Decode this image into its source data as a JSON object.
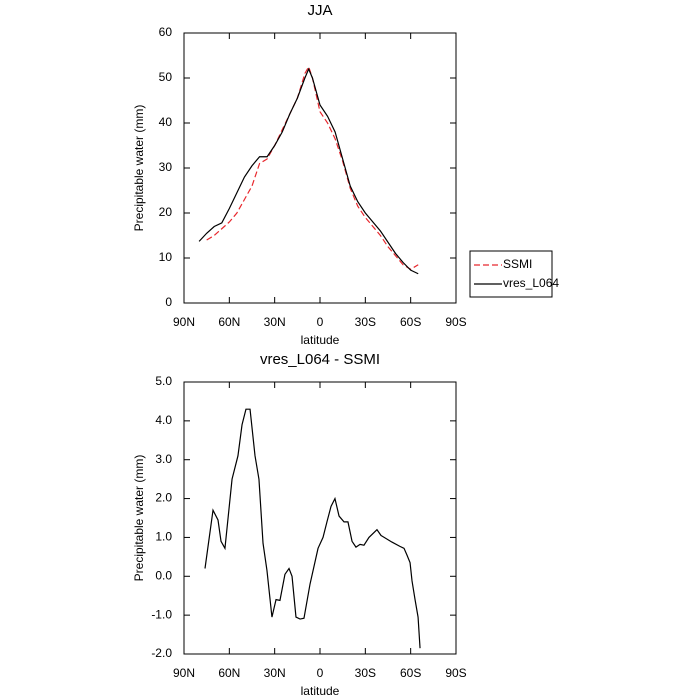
{
  "chart_data": [
    {
      "type": "line",
      "title": "JJA",
      "x_label": "latitude",
      "y_label": "Precipitable water (mm)",
      "xlim": [
        90,
        -90
      ],
      "xticks": [
        {
          "value": 90,
          "label": "90N"
        },
        {
          "value": 60,
          "label": "60N"
        },
        {
          "value": 30,
          "label": "30N"
        },
        0,
        {
          "value": -30,
          "label": "30S"
        },
        {
          "value": -60,
          "label": "60S"
        },
        {
          "value": -90,
          "label": "90S"
        }
      ],
      "ylim": [
        0,
        60
      ],
      "yticks": [
        0,
        10,
        20,
        30,
        40,
        50,
        60
      ],
      "legend": "outside-right",
      "x": [
        80,
        75,
        70,
        65,
        60,
        55,
        50,
        45,
        40,
        35,
        30,
        25,
        20,
        15,
        10,
        7.5,
        5,
        0,
        -5,
        -10,
        -15,
        -20,
        -25,
        -30,
        -35,
        -40,
        -45,
        -50,
        -55,
        -60,
        -65
      ],
      "series": [
        {
          "name": "SSMI",
          "color": "#e8282e",
          "line_style": "dashed",
          "values": [
            null,
            14,
            15,
            16.5,
            18,
            20,
            23,
            26,
            31,
            32,
            35,
            38.5,
            42,
            45.5,
            51,
            52.5,
            50,
            42.5,
            40,
            36.5,
            31.5,
            25.5,
            21.5,
            19,
            17,
            15,
            12.5,
            10.5,
            8.5,
            7.5,
            8.5
          ]
        },
        {
          "name": "vres_L064",
          "color": "#000000",
          "line_style": "solid",
          "values": [
            13.7,
            15.5,
            17,
            17.8,
            21,
            24.5,
            28,
            30.5,
            32.5,
            32.5,
            35,
            38,
            42,
            45.5,
            50,
            52,
            50,
            44,
            41.5,
            38,
            32,
            26,
            22.5,
            20,
            18,
            16,
            13.5,
            11,
            9,
            7.3,
            6.5
          ]
        }
      ]
    },
    {
      "type": "line",
      "title": "vres_L064 - SSMI",
      "x_label": "latitude",
      "y_label": "Precipitable water (mm)",
      "xlim": [
        90,
        -90
      ],
      "xticks": [
        {
          "value": 90,
          "label": "90N"
        },
        {
          "value": 60,
          "label": "60N"
        },
        {
          "value": 30,
          "label": "30N"
        },
        0,
        {
          "value": -30,
          "label": "30S"
        },
        {
          "value": -60,
          "label": "60S"
        },
        {
          "value": -90,
          "label": "90S"
        }
      ],
      "ylim": [
        -2,
        5
      ],
      "yticks": [
        {
          "value": -2,
          "label": "-2.0"
        },
        {
          "value": -1,
          "label": "-1.0"
        },
        {
          "value": 0,
          "label": "0.0"
        },
        {
          "value": 1,
          "label": "1.0"
        },
        {
          "value": 2,
          "label": "2.0"
        },
        {
          "value": 3,
          "label": "3.0"
        },
        {
          "value": 4,
          "label": "4.0"
        },
        {
          "value": 5,
          "label": "5.0"
        }
      ],
      "x": [
        76.1,
        70.8,
        67.5,
        65.5,
        62.9,
        58.2,
        54.3,
        51.6,
        49,
        46.3,
        43,
        40.4,
        37.7,
        35.1,
        31.8,
        29.1,
        26.5,
        23.2,
        20.5,
        18.5,
        15.9,
        13.2,
        10.6,
        6.6,
        1.3,
        -2,
        -4.6,
        -7.3,
        -9.9,
        -12.6,
        -15.9,
        -18.5,
        -21.2,
        -23.8,
        -26.5,
        -29.1,
        -32.4,
        -37.7,
        -40.4,
        -47.6,
        -52.9,
        -55.6,
        -57.5,
        -59.6,
        -60.9,
        -62.9,
        -64.9,
        -66.2
      ],
      "series": [
        {
          "color": "#000000",
          "line_style": "solid",
          "values": [
            0.2,
            1.7,
            1.45,
            0.9,
            0.72,
            2.5,
            3.1,
            3.9,
            4.3,
            4.3,
            3.1,
            2.5,
            0.85,
            0.15,
            -1.05,
            -0.6,
            -0.62,
            0.05,
            0.2,
            0,
            -1.05,
            -1.1,
            -1.08,
            -0.2,
            0.72,
            1,
            1.4,
            1.8,
            2,
            1.55,
            1.4,
            1.4,
            0.9,
            0.75,
            0.82,
            0.8,
            1,
            1.2,
            1.05,
            0.88,
            0.77,
            0.72,
            0.55,
            0.35,
            -0.12,
            -0.6,
            -1.05,
            -1.85
          ]
        }
      ]
    }
  ]
}
